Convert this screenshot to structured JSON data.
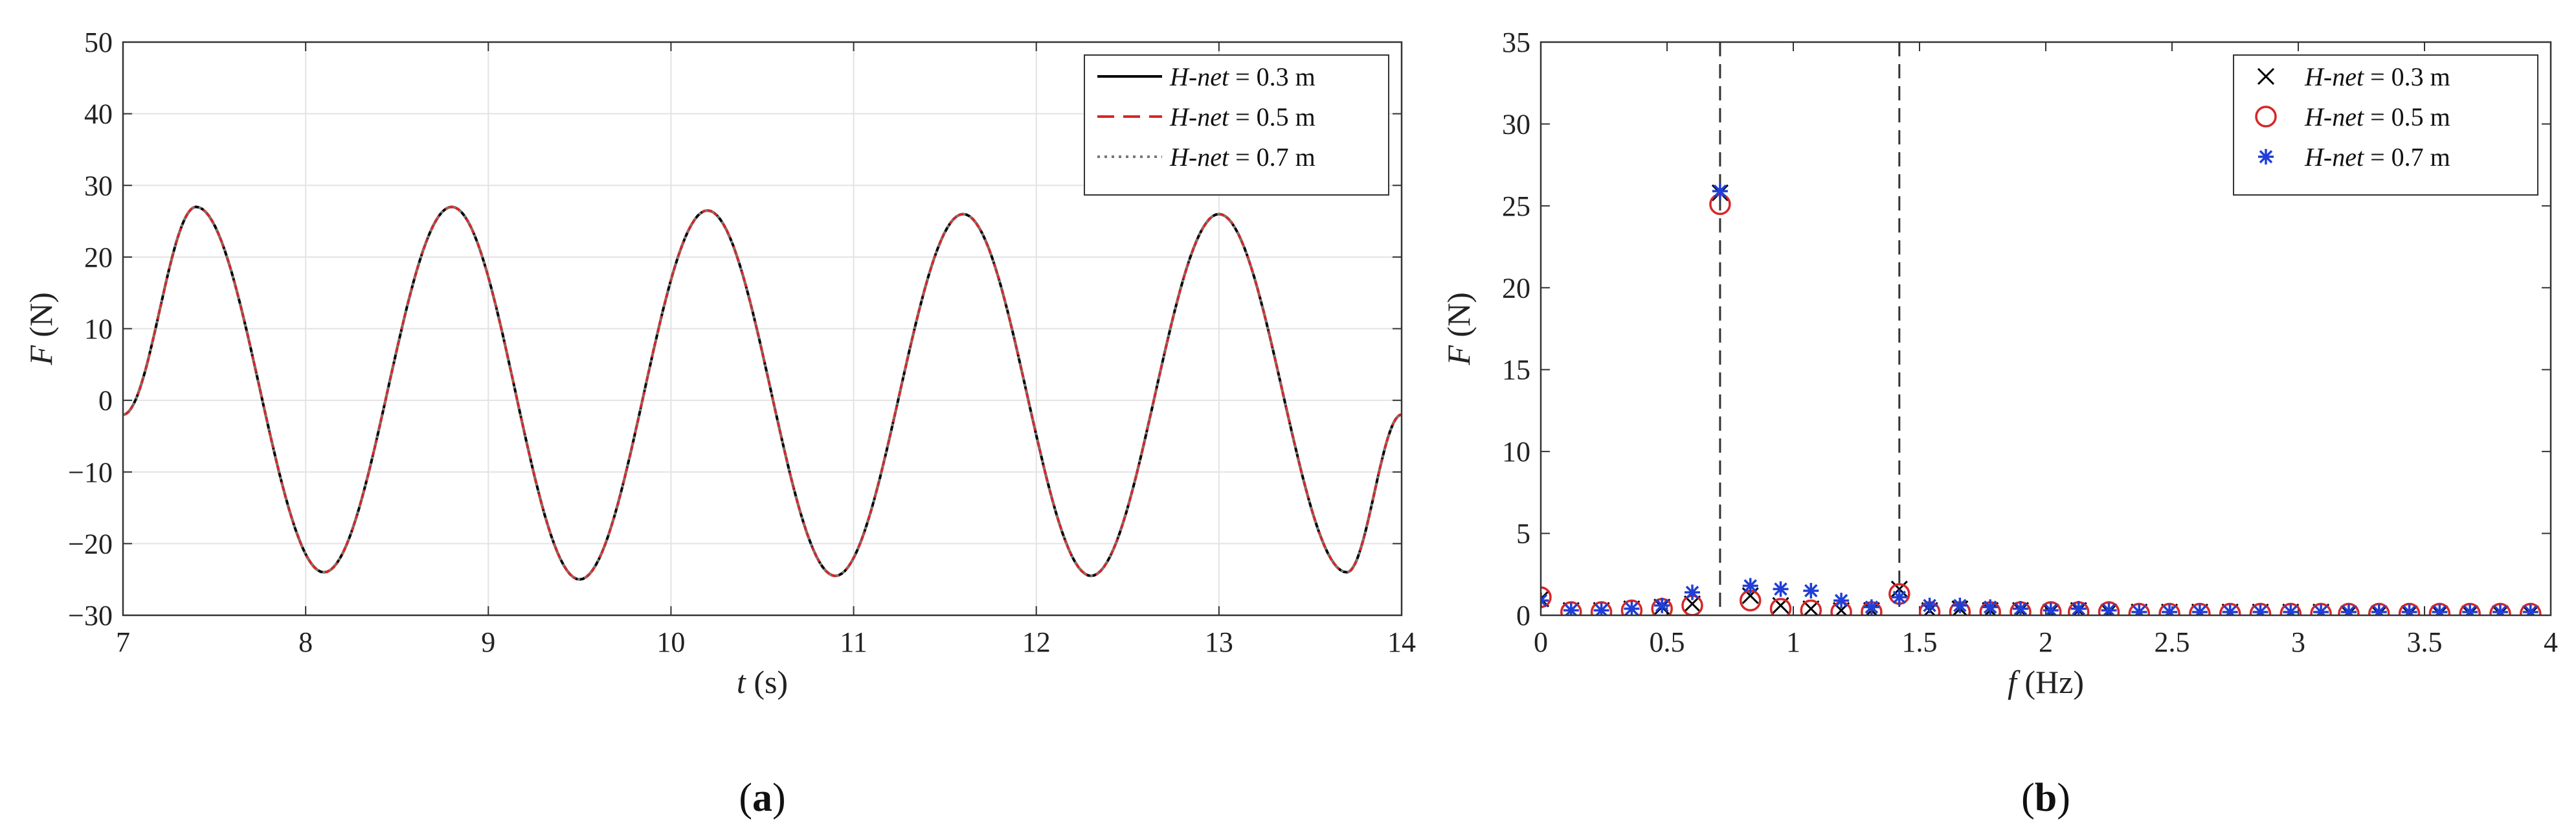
{
  "chart_data": [
    {
      "type": "line",
      "panel_label": "(a)",
      "xlabel": "t (s)",
      "ylabel": "F (N)",
      "xlim": [
        7,
        14
      ],
      "ylim": [
        -30,
        50
      ],
      "xticks": [
        "7",
        "8",
        "9",
        "10",
        "11",
        "12",
        "13",
        "14"
      ],
      "yticks": [
        "-30",
        "-20",
        "-10",
        "0",
        "10",
        "20",
        "30",
        "40",
        "50"
      ],
      "grid": true,
      "legend_position": "top-right",
      "series": [
        {
          "name": "H-net = 0.3 m",
          "color": "#000000",
          "style": "solid",
          "x": [
            7.0,
            7.4,
            8.1,
            8.8,
            9.5,
            10.2,
            10.9,
            11.6,
            12.3,
            13.0,
            13.7,
            14.0
          ],
          "values": [
            -2.0,
            27.0,
            -24.0,
            27.0,
            -25.0,
            26.5,
            -24.5,
            26.0,
            -24.5,
            26.0,
            -24.0,
            -2.0
          ]
        },
        {
          "name": "H-net = 0.5 m",
          "color": "#d62728",
          "style": "dashed",
          "x": [
            7.0,
            7.4,
            8.1,
            8.8,
            9.5,
            10.2,
            10.9,
            11.6,
            12.3,
            13.0,
            13.7,
            14.0
          ],
          "values": [
            -2.0,
            27.0,
            -24.0,
            27.0,
            -25.0,
            26.5,
            -24.5,
            26.0,
            -24.5,
            26.0,
            -24.0,
            -2.0
          ]
        },
        {
          "name": "H-net = 0.7 m",
          "color": "#777777",
          "style": "dotted",
          "x": [
            7.0,
            7.4,
            8.1,
            8.8,
            9.5,
            10.2,
            10.9,
            11.6,
            12.3,
            13.0,
            13.7,
            14.0
          ],
          "values": [
            -2.0,
            27.0,
            -24.0,
            27.0,
            -25.0,
            26.5,
            -24.5,
            26.0,
            -24.5,
            26.0,
            -24.0,
            -2.0
          ]
        }
      ]
    },
    {
      "type": "scatter",
      "panel_label": "(b)",
      "xlabel": "f (Hz)",
      "ylabel": "F (N)",
      "xlim": [
        0,
        4
      ],
      "ylim": [
        0,
        35
      ],
      "xticks": [
        "0",
        "0.5",
        "1",
        "1.5",
        "2",
        "2.5",
        "3",
        "3.5",
        "4"
      ],
      "yticks": [
        "0",
        "5",
        "10",
        "15",
        "20",
        "25",
        "30",
        "35"
      ],
      "grid": false,
      "vlines": [
        0.71,
        1.42
      ],
      "legend_position": "top-right",
      "series": [
        {
          "name": "H-net = 0.3 m",
          "color": "#000000",
          "marker": "x",
          "x": [
            0.0,
            0.12,
            0.24,
            0.36,
            0.48,
            0.6,
            0.71,
            0.83,
            0.95,
            1.07,
            1.19,
            1.31,
            1.42,
            1.54,
            1.66,
            1.78,
            1.9,
            2.02,
            2.13,
            2.25,
            2.37,
            2.49,
            2.61,
            2.73,
            2.85,
            2.97,
            3.09,
            3.2,
            3.32,
            3.44,
            3.56,
            3.68,
            3.8,
            3.92
          ],
          "values": [
            1.0,
            0.3,
            0.3,
            0.4,
            0.5,
            0.7,
            25.8,
            1.2,
            0.6,
            0.4,
            0.3,
            0.3,
            1.6,
            0.3,
            0.4,
            0.3,
            0.3,
            0.2,
            0.3,
            0.2,
            0.2,
            0.2,
            0.2,
            0.2,
            0.2,
            0.2,
            0.2,
            0.1,
            0.1,
            0.1,
            0.1,
            0.1,
            0.1,
            0.1
          ]
        },
        {
          "name": "H-net = 0.5 m",
          "color": "#d62728",
          "marker": "circle",
          "x": [
            0.0,
            0.12,
            0.24,
            0.36,
            0.48,
            0.6,
            0.71,
            0.83,
            0.95,
            1.07,
            1.19,
            1.31,
            1.42,
            1.54,
            1.66,
            1.78,
            1.9,
            2.02,
            2.13,
            2.25,
            2.37,
            2.49,
            2.61,
            2.73,
            2.85,
            2.97,
            3.09,
            3.2,
            3.32,
            3.44,
            3.56,
            3.68,
            3.8,
            3.92
          ],
          "values": [
            1.1,
            0.2,
            0.2,
            0.3,
            0.4,
            0.6,
            25.1,
            0.9,
            0.4,
            0.3,
            0.2,
            0.2,
            1.3,
            0.2,
            0.2,
            0.2,
            0.2,
            0.2,
            0.2,
            0.2,
            0.1,
            0.1,
            0.1,
            0.1,
            0.1,
            0.1,
            0.1,
            0.1,
            0.1,
            0.1,
            0.1,
            0.1,
            0.1,
            0.1
          ]
        },
        {
          "name": "H-net = 0.7 m",
          "color": "#1f3fd6",
          "marker": "asterisk",
          "x": [
            0.0,
            0.12,
            0.24,
            0.36,
            0.48,
            0.6,
            0.71,
            0.83,
            0.95,
            1.07,
            1.19,
            1.31,
            1.42,
            1.54,
            1.66,
            1.78,
            1.9,
            2.02,
            2.13,
            2.25,
            2.37,
            2.49,
            2.61,
            2.73,
            2.85,
            2.97,
            3.09,
            3.2,
            3.32,
            3.44,
            3.56,
            3.68,
            3.8,
            3.92
          ],
          "values": [
            0.9,
            0.3,
            0.3,
            0.4,
            0.6,
            1.4,
            25.9,
            1.8,
            1.6,
            1.5,
            0.9,
            0.5,
            1.1,
            0.6,
            0.6,
            0.5,
            0.4,
            0.3,
            0.4,
            0.3,
            0.2,
            0.2,
            0.2,
            0.2,
            0.2,
            0.2,
            0.2,
            0.2,
            0.2,
            0.2,
            0.2,
            0.2,
            0.2,
            0.2
          ]
        }
      ]
    }
  ]
}
